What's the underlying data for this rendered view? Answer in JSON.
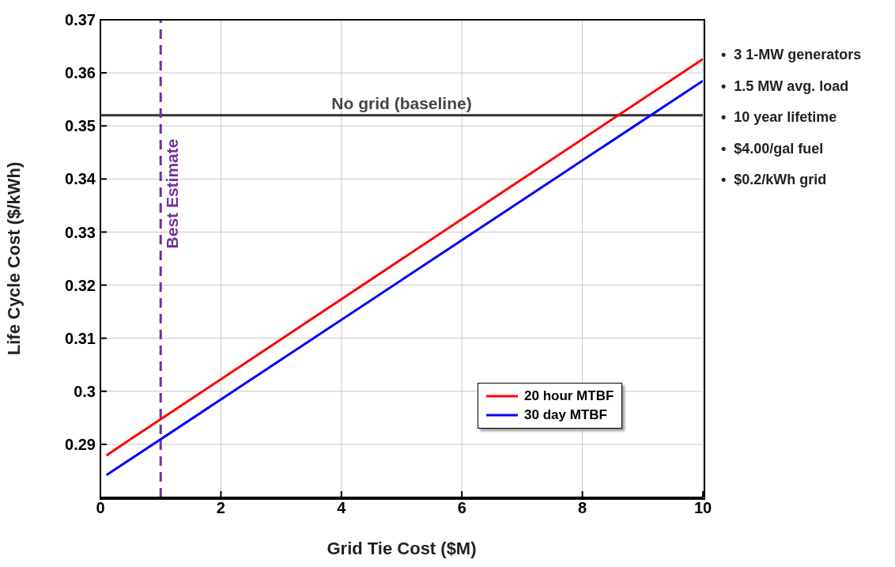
{
  "chart_data": {
    "type": "line",
    "xlabel": "Grid Tie Cost ($M)",
    "ylabel": "Life Cycle Cost ($/kWh)",
    "xlim": [
      0,
      10
    ],
    "xticks": [
      0,
      2,
      4,
      6,
      8,
      10
    ],
    "ylim": [
      0.28,
      0.37
    ],
    "yticks": [
      0.29,
      0.3,
      0.31,
      0.32,
      0.33,
      0.34,
      0.35,
      0.36,
      0.37
    ],
    "grid": true,
    "legend": "bottom right",
    "marker": "none",
    "line_style": "solid",
    "series": [
      {
        "name": "20 hour MTBF",
        "color": "#ff0000",
        "x": [
          0.1,
          0.4,
          10
        ],
        "values": [
          0.2879,
          0.2902,
          0.3626
        ]
      },
      {
        "name": "30 day MTBF",
        "color": "#0000ff",
        "x": [
          0.1,
          10
        ],
        "values": [
          0.2842,
          0.3585
        ]
      }
    ],
    "ref_lines": [
      {
        "axis": "y",
        "value": 0.352,
        "label": "No grid (baseline)",
        "color": "#333333",
        "line_style": "solid"
      },
      {
        "axis": "x",
        "value": 1,
        "label": "Best Estimate",
        "color": "#7030a0",
        "line_style": "dashed"
      }
    ],
    "annotations": [
      "•  3 1-MW generators",
      "•  1.5 MW avg. load",
      "•  10 year lifetime",
      "•  $4.00/gal fuel",
      "•  $0.2/kWh grid"
    ]
  }
}
